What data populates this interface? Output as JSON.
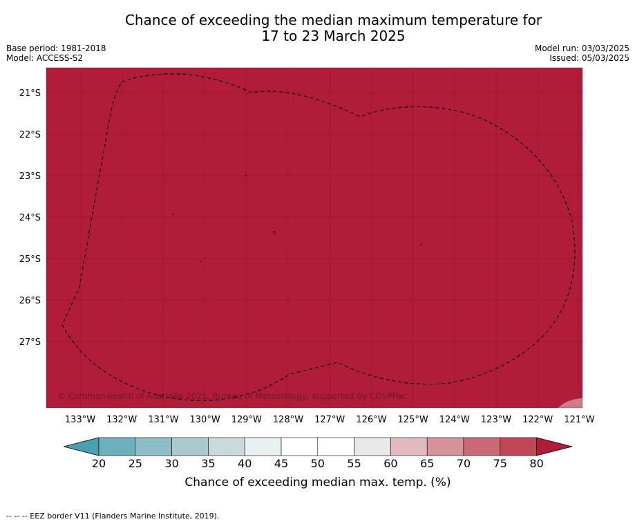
{
  "title_line1": "Chance of exceeding the median maximum temperature for",
  "title_line2": "17 to 23 March 2025",
  "base_period": "Base period: 1981-2018",
  "model": "Model: ACCESS-S2",
  "model_run": "Model run: 03/03/2025",
  "issued": "Issued: 05/03/2025",
  "copyright": "© Commonwealth of Australia 2025, Bureau of Meteorology, supported by COSPPac",
  "colorbar_label": "Chance of exceeding median max. temp. (%)",
  "footer_note": "-- -- -- EEZ border V11 (Flanders Marine Institute, 2019).",
  "map": {
    "lon_ticks": [
      "133°W",
      "132°W",
      "131°W",
      "130°W",
      "129°W",
      "128°W",
      "127°W",
      "126°W",
      "125°W",
      "124°W",
      "123°W",
      "122°W",
      "121°W"
    ],
    "lat_ticks": [
      "21°S",
      "22°S",
      "23°S",
      "24°S",
      "25°S",
      "26°S",
      "27°S"
    ],
    "fill_value_percent": 80,
    "fill_color": "#b11c39"
  },
  "colorbar": {
    "ticks": [
      "20",
      "25",
      "30",
      "35",
      "40",
      "45",
      "50",
      "55",
      "60",
      "65",
      "70",
      "75",
      "80"
    ],
    "under_color": "#4aa0b0",
    "over_color": "#b11c39",
    "colors": [
      "#6eafbe",
      "#8ebdc7",
      "#a9c9cd",
      "#c8dadd",
      "#eaf1f3",
      "#ffffff",
      "#ffffff",
      "#e9e9e9",
      "#e2b9bf",
      "#d79299",
      "#cb6a76",
      "#c14656"
    ]
  }
}
